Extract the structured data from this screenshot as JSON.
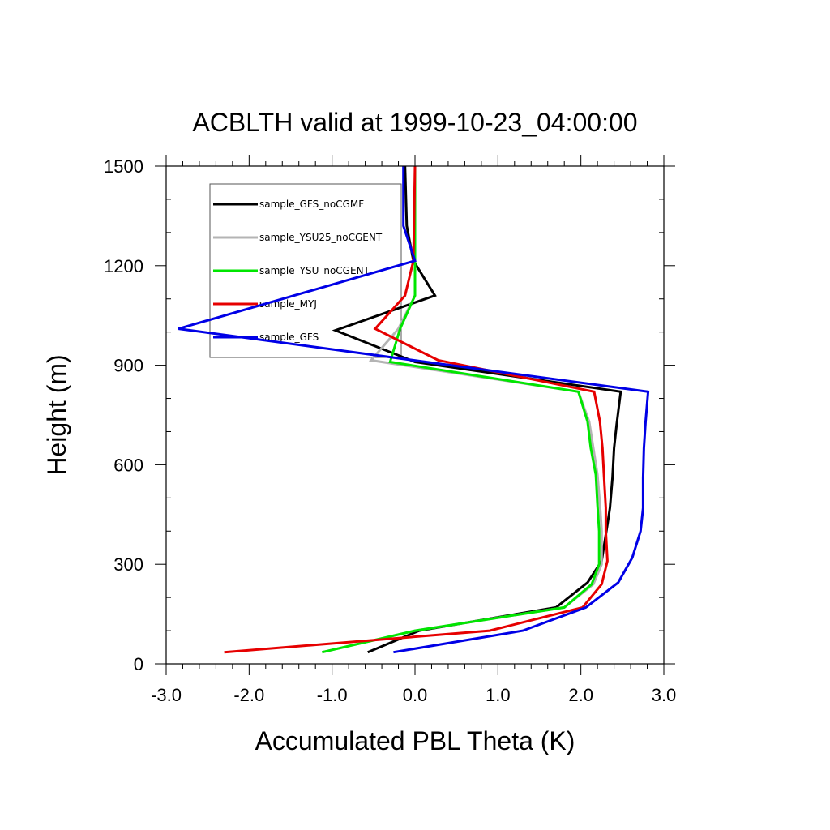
{
  "chart_data": {
    "type": "line",
    "title": "ACBLTH valid at 1999-10-23_04:00:00",
    "xlabel": "Accumulated PBL Theta (K)",
    "ylabel": "Height (m)",
    "xlim": [
      -3.0,
      3.0
    ],
    "ylim": [
      0,
      1500
    ],
    "xticks": [
      "-3.0",
      "-2.0",
      "-1.0",
      "0.0",
      "1.0",
      "2.0",
      "3.0"
    ],
    "yticks": [
      "0",
      "300",
      "600",
      "900",
      "1200",
      "1500"
    ],
    "legend_placement": "upper-left inside",
    "grid": false,
    "series": [
      {
        "name": "sample_GFS_noCGMF",
        "color": "#000000",
        "points": [
          [
            -0.57,
            35
          ],
          [
            0.05,
            100
          ],
          [
            1.7,
            170
          ],
          [
            2.08,
            245
          ],
          [
            2.25,
            310
          ],
          [
            2.32,
            420
          ],
          [
            2.35,
            470
          ],
          [
            2.38,
            560
          ],
          [
            2.4,
            650
          ],
          [
            2.43,
            720
          ],
          [
            2.48,
            820
          ],
          [
            0.0,
            910
          ],
          [
            -0.96,
            1005
          ],
          [
            0.24,
            1110
          ],
          [
            -0.02,
            1215
          ],
          [
            -0.1,
            1320
          ],
          [
            -0.12,
            1500
          ]
        ]
      },
      {
        "name": "sample_YSU25_noCGENT",
        "color": "#b4b4b4",
        "points": [
          [
            -1.12,
            35
          ],
          [
            0.0,
            100
          ],
          [
            1.8,
            170
          ],
          [
            2.15,
            240
          ],
          [
            2.25,
            300
          ],
          [
            2.25,
            400
          ],
          [
            2.23,
            480
          ],
          [
            2.2,
            570
          ],
          [
            2.15,
            650
          ],
          [
            2.1,
            730
          ],
          [
            1.97,
            820
          ],
          [
            -0.53,
            915
          ],
          [
            -0.2,
            1010
          ],
          [
            0.0,
            1110
          ],
          [
            0.0,
            1220
          ],
          [
            0.0,
            1500
          ]
        ]
      },
      {
        "name": "sample_YSU_noCGENT",
        "color": "#00e600",
        "points": [
          [
            -1.12,
            35
          ],
          [
            0.0,
            100
          ],
          [
            1.8,
            170
          ],
          [
            2.13,
            240
          ],
          [
            2.22,
            300
          ],
          [
            2.22,
            400
          ],
          [
            2.2,
            480
          ],
          [
            2.18,
            570
          ],
          [
            2.12,
            650
          ],
          [
            2.08,
            730
          ],
          [
            1.97,
            820
          ],
          [
            -0.3,
            910
          ],
          [
            -0.18,
            1010
          ],
          [
            0.0,
            1110
          ],
          [
            0.0,
            1220
          ],
          [
            0.0,
            1500
          ]
        ]
      },
      {
        "name": "sample_MYJ",
        "color": "#e60000",
        "points": [
          [
            -2.3,
            35
          ],
          [
            0.9,
            100
          ],
          [
            2.02,
            170
          ],
          [
            2.25,
            240
          ],
          [
            2.32,
            310
          ],
          [
            2.3,
            400
          ],
          [
            2.3,
            470
          ],
          [
            2.28,
            560
          ],
          [
            2.26,
            650
          ],
          [
            2.23,
            730
          ],
          [
            2.16,
            820
          ],
          [
            0.28,
            915
          ],
          [
            -0.48,
            1010
          ],
          [
            -0.12,
            1110
          ],
          [
            -0.02,
            1215
          ],
          [
            0.0,
            1500
          ]
        ]
      },
      {
        "name": "sample_GFS",
        "color": "#0000e6",
        "points": [
          [
            -0.26,
            35
          ],
          [
            1.3,
            100
          ],
          [
            2.06,
            170
          ],
          [
            2.45,
            245
          ],
          [
            2.62,
            320
          ],
          [
            2.72,
            400
          ],
          [
            2.75,
            470
          ],
          [
            2.75,
            560
          ],
          [
            2.76,
            650
          ],
          [
            2.78,
            730
          ],
          [
            2.81,
            820
          ],
          [
            -2.85,
            1010
          ],
          [
            0.0,
            1215
          ],
          [
            -0.14,
            1320
          ],
          [
            -0.14,
            1500
          ]
        ]
      }
    ]
  }
}
